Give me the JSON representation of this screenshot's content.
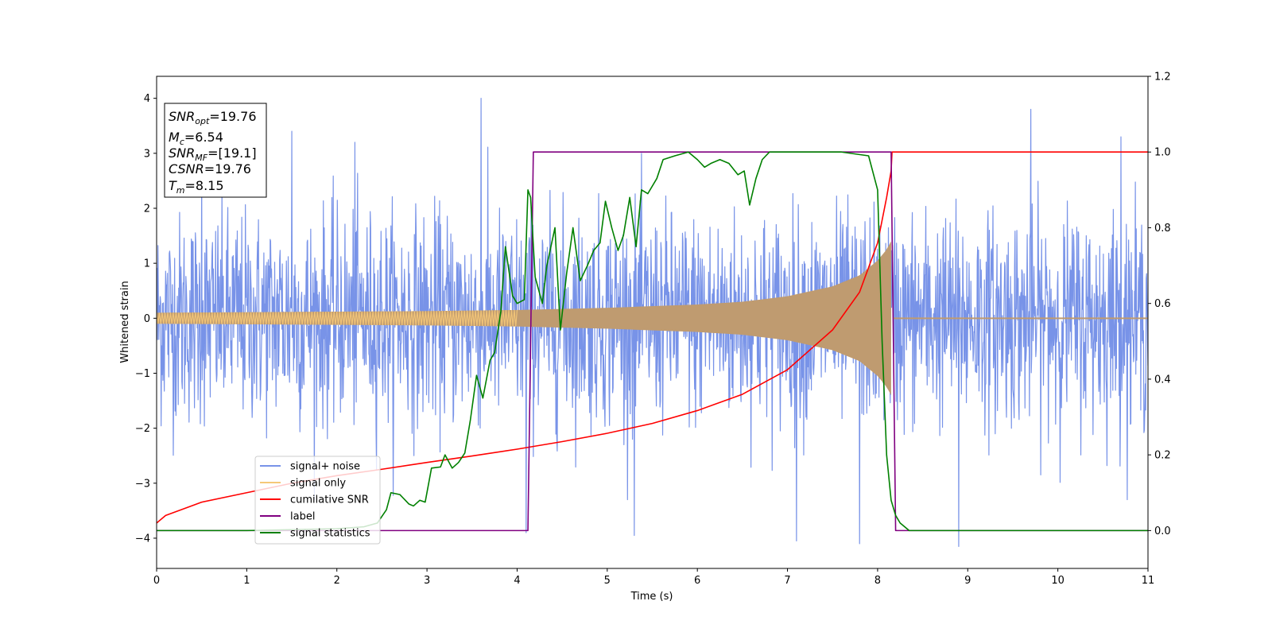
{
  "chart_data": {
    "type": "line",
    "title": "",
    "xlabel": "Time (s)",
    "ylabel": "Whitened strain",
    "xlim": [
      0,
      11
    ],
    "ylim": [
      -4.55,
      4.4
    ],
    "y2lim": [
      -0.1,
      1.2
    ],
    "xticks": [
      0,
      1,
      2,
      3,
      4,
      5,
      6,
      7,
      8,
      9,
      10,
      11
    ],
    "yticks": [
      -4,
      -3,
      -2,
      -1,
      0,
      1,
      2,
      3,
      4
    ],
    "y2ticks": [
      0.0,
      0.2,
      0.4,
      0.6,
      0.8,
      1.0,
      1.2
    ],
    "grid": false,
    "legend_position": "lower-left",
    "annotation_box": {
      "lines": [
        {
          "main": "SNR",
          "sub": "opt",
          "rest": "=19.76"
        },
        {
          "main": "M",
          "sub": "c",
          "rest": "=6.54"
        },
        {
          "main": "SNR",
          "sub": "MF",
          "rest": "=[19.1]"
        },
        {
          "main": "CSNR",
          "sub": "",
          "rest": "=19.76"
        },
        {
          "main": "T",
          "sub": "m",
          "rest": "=8.15"
        }
      ]
    },
    "series": [
      {
        "name": "signal+ noise",
        "color": "#7893e8",
        "axis": "left",
        "kind": "noise",
        "std": 0.95,
        "x_range": [
          0,
          11
        ],
        "x_extremes": [
          0.5,
          1.5,
          2.2,
          3.6,
          4.1,
          5.3,
          7.1,
          7.8,
          8.9,
          9.7,
          10.7
        ],
        "y_extremes": [
          2.7,
          3.4,
          3.2,
          4.0,
          -3.9,
          -3.95,
          -4.05,
          -4.1,
          -4.15,
          3.8,
          3.3
        ]
      },
      {
        "name": "signal only",
        "color": "#f5c878",
        "fill_color": "#bf9b70",
        "axis": "left",
        "kind": "chirp_envelope",
        "x": [
          0,
          1,
          2,
          3,
          4,
          5,
          6,
          6.5,
          7,
          7.5,
          7.8,
          8.0,
          8.1,
          8.15,
          8.17,
          11
        ],
        "amplitude": [
          0.1,
          0.11,
          0.12,
          0.13,
          0.15,
          0.19,
          0.25,
          0.3,
          0.4,
          0.58,
          0.78,
          1.05,
          1.25,
          1.4,
          0.0,
          0.0
        ]
      },
      {
        "name": "cumilative SNR",
        "color": "#ff0000",
        "axis": "right",
        "x": [
          0,
          0.1,
          0.5,
          1,
          1.5,
          2,
          2.5,
          3,
          3.5,
          4,
          4.5,
          5,
          5.5,
          6,
          6.5,
          7,
          7.5,
          7.8,
          8.0,
          8.1,
          8.15,
          8.16,
          11
        ],
        "y": [
          0.02,
          0.04,
          0.075,
          0.1,
          0.125,
          0.145,
          0.162,
          0.18,
          0.197,
          0.215,
          0.235,
          0.257,
          0.283,
          0.317,
          0.36,
          0.425,
          0.53,
          0.63,
          0.76,
          0.88,
          0.95,
          1.0,
          1.0
        ]
      },
      {
        "name": "label",
        "color": "#800080",
        "axis": "right",
        "x": [
          0,
          4.12,
          4.18,
          8.15,
          8.2,
          11
        ],
        "y": [
          0.0,
          0.0,
          1.0,
          1.0,
          0.0,
          0.0
        ]
      },
      {
        "name": "signal statistics",
        "color": "#008000",
        "axis": "right",
        "x": [
          0,
          1.0,
          2.0,
          2.3,
          2.45,
          2.55,
          2.6,
          2.7,
          2.8,
          2.85,
          2.92,
          2.98,
          3.05,
          3.15,
          3.2,
          3.28,
          3.35,
          3.42,
          3.48,
          3.55,
          3.62,
          3.7,
          3.75,
          3.82,
          3.87,
          3.95,
          4.0,
          4.08,
          4.12,
          4.15,
          4.2,
          4.28,
          4.33,
          4.42,
          4.48,
          4.55,
          4.62,
          4.7,
          4.78,
          4.85,
          4.92,
          4.98,
          5.05,
          5.12,
          5.18,
          5.25,
          5.32,
          5.38,
          5.45,
          5.55,
          5.62,
          5.75,
          5.9,
          6.0,
          6.08,
          6.15,
          6.25,
          6.35,
          6.45,
          6.52,
          6.58,
          6.65,
          6.72,
          6.8,
          6.9,
          7.0,
          7.3,
          7.6,
          7.9,
          8.0,
          8.05,
          8.1,
          8.15,
          8.2,
          8.25,
          8.35,
          11
        ],
        "y": [
          0.0,
          0.0,
          0.005,
          0.01,
          0.02,
          0.055,
          0.1,
          0.095,
          0.07,
          0.065,
          0.08,
          0.075,
          0.165,
          0.168,
          0.2,
          0.165,
          0.18,
          0.205,
          0.29,
          0.41,
          0.35,
          0.45,
          0.47,
          0.58,
          0.75,
          0.62,
          0.6,
          0.61,
          0.9,
          0.88,
          0.67,
          0.6,
          0.7,
          0.8,
          0.53,
          0.68,
          0.8,
          0.66,
          0.7,
          0.74,
          0.76,
          0.87,
          0.8,
          0.74,
          0.78,
          0.88,
          0.75,
          0.9,
          0.89,
          0.93,
          0.98,
          0.99,
          1.0,
          0.98,
          0.96,
          0.97,
          0.98,
          0.97,
          0.94,
          0.95,
          0.86,
          0.93,
          0.98,
          1.0,
          1.0,
          1.0,
          1.0,
          1.0,
          0.99,
          0.9,
          0.5,
          0.2,
          0.08,
          0.04,
          0.02,
          0.0,
          0.0
        ]
      }
    ]
  }
}
